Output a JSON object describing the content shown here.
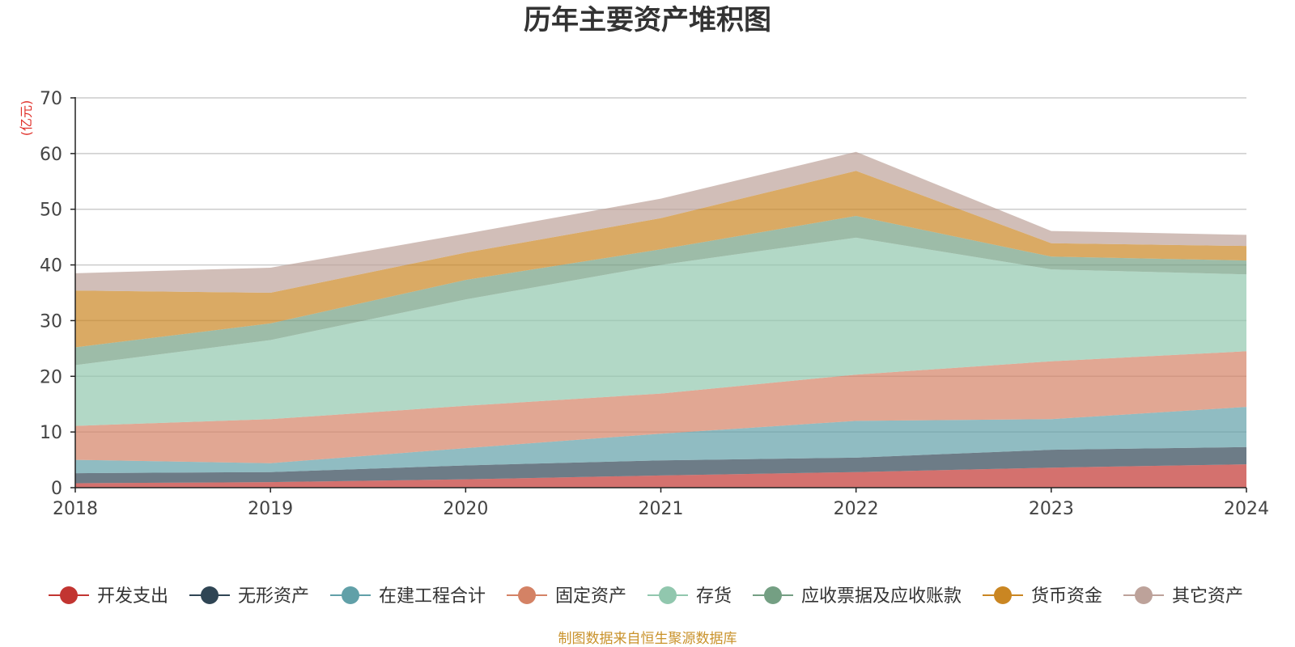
{
  "chart_data": {
    "type": "area",
    "stacked": true,
    "title": "历年主要资产堆积图",
    "ylabel": "(亿元)",
    "xlabel": "",
    "categories": [
      "2018",
      "2019",
      "2020",
      "2021",
      "2022",
      "2023",
      "2024"
    ],
    "ylim": [
      0,
      70
    ],
    "yticks": [
      0,
      10,
      20,
      30,
      40,
      50,
      60,
      70
    ],
    "grid": true,
    "legend_position": "bottom",
    "series": [
      {
        "name": "开发支出",
        "color": "#c23531",
        "values": [
          0.8,
          1.0,
          1.5,
          2.2,
          2.8,
          3.6,
          4.2
        ]
      },
      {
        "name": "无形资产",
        "color": "#2f4554",
        "values": [
          1.8,
          1.8,
          2.5,
          2.7,
          2.6,
          3.2,
          3.1
        ]
      },
      {
        "name": "在建工程合计",
        "color": "#61a0a8",
        "values": [
          2.4,
          1.6,
          3.1,
          4.8,
          6.6,
          5.5,
          7.2
        ]
      },
      {
        "name": "固定资产",
        "color": "#d48265",
        "values": [
          6.1,
          7.9,
          7.6,
          7.2,
          8.3,
          10.4,
          10.0
        ]
      },
      {
        "name": "存货",
        "color": "#91c7ae",
        "values": [
          10.9,
          14.2,
          19.1,
          23.1,
          24.6,
          16.5,
          13.8
        ]
      },
      {
        "name": "应收票据及应收账款",
        "color": "#749f83",
        "values": [
          3.2,
          3.0,
          3.5,
          2.8,
          3.9,
          2.3,
          2.5
        ]
      },
      {
        "name": "货币资金",
        "color": "#ca8622",
        "values": [
          10.2,
          5.5,
          4.9,
          5.6,
          8.1,
          2.4,
          2.6
        ]
      },
      {
        "name": "其它资产",
        "color": "#bda29a",
        "values": [
          3.1,
          4.5,
          3.4,
          3.5,
          3.4,
          2.2,
          2.0
        ]
      }
    ]
  },
  "source_note": "制图数据来自恒生聚源数据库"
}
